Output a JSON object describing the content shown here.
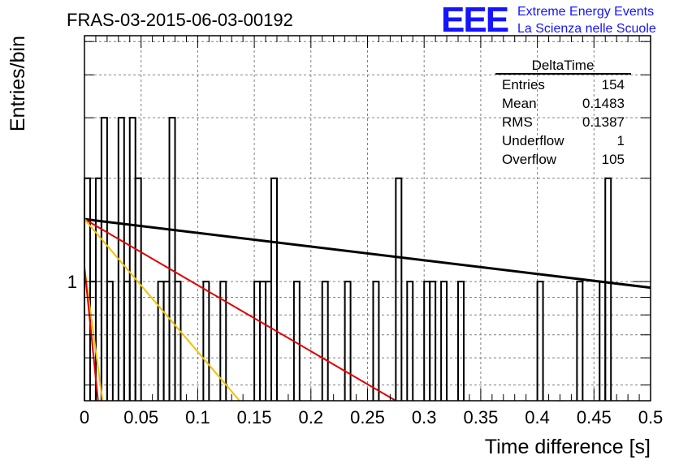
{
  "header": {
    "run_title": "FRAS-03-2015-06-03-00192",
    "logo_text": "EEE",
    "logo_line1": "Extreme Energy Events",
    "logo_line2": "La Scienza nelle Scuole",
    "logo_color": "#1414ff"
  },
  "chart_data": {
    "type": "bar",
    "title": "FRAS-03-2015-06-03-00192",
    "xlabel": "Time difference [s]",
    "ylabel": "Entries/bin",
    "xlim": [
      0,
      0.5
    ],
    "ylim": [
      0.45,
      5.2
    ],
    "y_scale": "log",
    "grid": true,
    "bin_width": 0.005,
    "x_ticks": [
      "0",
      "0.05",
      "0.1",
      "0.15",
      "0.2",
      "0.25",
      "0.3",
      "0.35",
      "0.4",
      "0.45",
      "0.5"
    ],
    "y_tick_labels": [
      {
        "value": 1,
        "label": "1"
      }
    ],
    "histogram": {
      "name": "DeltaTime",
      "color": "#000000",
      "bins": [
        {
          "x": 0.0,
          "y": 2
        },
        {
          "x": 0.005,
          "y": 1
        },
        {
          "x": 0.01,
          "y": 2
        },
        {
          "x": 0.015,
          "y": 3
        },
        {
          "x": 0.02,
          "y": 1
        },
        {
          "x": 0.025,
          "y": 0
        },
        {
          "x": 0.03,
          "y": 3
        },
        {
          "x": 0.035,
          "y": 1
        },
        {
          "x": 0.04,
          "y": 3
        },
        {
          "x": 0.045,
          "y": 2
        },
        {
          "x": 0.05,
          "y": 0
        },
        {
          "x": 0.055,
          "y": 0
        },
        {
          "x": 0.06,
          "y": 0
        },
        {
          "x": 0.065,
          "y": 1
        },
        {
          "x": 0.07,
          "y": 1
        },
        {
          "x": 0.075,
          "y": 3
        },
        {
          "x": 0.08,
          "y": 1
        },
        {
          "x": 0.085,
          "y": 0
        },
        {
          "x": 0.09,
          "y": 0
        },
        {
          "x": 0.095,
          "y": 0
        },
        {
          "x": 0.1,
          "y": 0
        },
        {
          "x": 0.105,
          "y": 1
        },
        {
          "x": 0.11,
          "y": 0
        },
        {
          "x": 0.115,
          "y": 0
        },
        {
          "x": 0.12,
          "y": 1
        },
        {
          "x": 0.125,
          "y": 0
        },
        {
          "x": 0.13,
          "y": 0
        },
        {
          "x": 0.135,
          "y": 0
        },
        {
          "x": 0.14,
          "y": 0
        },
        {
          "x": 0.145,
          "y": 0
        },
        {
          "x": 0.15,
          "y": 1
        },
        {
          "x": 0.155,
          "y": 1
        },
        {
          "x": 0.16,
          "y": 1
        },
        {
          "x": 0.165,
          "y": 2
        },
        {
          "x": 0.17,
          "y": 0
        },
        {
          "x": 0.175,
          "y": 0
        },
        {
          "x": 0.18,
          "y": 0
        },
        {
          "x": 0.185,
          "y": 1
        },
        {
          "x": 0.19,
          "y": 0
        },
        {
          "x": 0.195,
          "y": 0
        },
        {
          "x": 0.2,
          "y": 0
        },
        {
          "x": 0.205,
          "y": 0
        },
        {
          "x": 0.21,
          "y": 1
        },
        {
          "x": 0.215,
          "y": 0
        },
        {
          "x": 0.22,
          "y": 0
        },
        {
          "x": 0.225,
          "y": 0
        },
        {
          "x": 0.23,
          "y": 1
        },
        {
          "x": 0.235,
          "y": 0
        },
        {
          "x": 0.24,
          "y": 0
        },
        {
          "x": 0.245,
          "y": 0
        },
        {
          "x": 0.25,
          "y": 0
        },
        {
          "x": 0.255,
          "y": 1
        },
        {
          "x": 0.26,
          "y": 0
        },
        {
          "x": 0.265,
          "y": 0
        },
        {
          "x": 0.27,
          "y": 0
        },
        {
          "x": 0.275,
          "y": 2
        },
        {
          "x": 0.28,
          "y": 0
        },
        {
          "x": 0.285,
          "y": 1
        },
        {
          "x": 0.29,
          "y": 0
        },
        {
          "x": 0.295,
          "y": 0
        },
        {
          "x": 0.3,
          "y": 1
        },
        {
          "x": 0.305,
          "y": 1
        },
        {
          "x": 0.31,
          "y": 0
        },
        {
          "x": 0.315,
          "y": 1
        },
        {
          "x": 0.32,
          "y": 0
        },
        {
          "x": 0.325,
          "y": 0
        },
        {
          "x": 0.33,
          "y": 1
        },
        {
          "x": 0.335,
          "y": 0
        },
        {
          "x": 0.34,
          "y": 0
        },
        {
          "x": 0.345,
          "y": 0
        },
        {
          "x": 0.35,
          "y": 0
        },
        {
          "x": 0.355,
          "y": 0
        },
        {
          "x": 0.36,
          "y": 0
        },
        {
          "x": 0.365,
          "y": 0
        },
        {
          "x": 0.37,
          "y": 0
        },
        {
          "x": 0.375,
          "y": 0
        },
        {
          "x": 0.38,
          "y": 0
        },
        {
          "x": 0.385,
          "y": 0
        },
        {
          "x": 0.39,
          "y": 0
        },
        {
          "x": 0.395,
          "y": 0
        },
        {
          "x": 0.4,
          "y": 1
        },
        {
          "x": 0.405,
          "y": 0
        },
        {
          "x": 0.41,
          "y": 0
        },
        {
          "x": 0.415,
          "y": 0
        },
        {
          "x": 0.42,
          "y": 0
        },
        {
          "x": 0.425,
          "y": 0
        },
        {
          "x": 0.43,
          "y": 0
        },
        {
          "x": 0.435,
          "y": 1
        },
        {
          "x": 0.44,
          "y": 0
        },
        {
          "x": 0.445,
          "y": 0
        },
        {
          "x": 0.45,
          "y": 0
        },
        {
          "x": 0.455,
          "y": 1
        },
        {
          "x": 0.46,
          "y": 2
        },
        {
          "x": 0.465,
          "y": 0
        },
        {
          "x": 0.47,
          "y": 0
        },
        {
          "x": 0.475,
          "y": 0
        },
        {
          "x": 0.48,
          "y": 0
        },
        {
          "x": 0.485,
          "y": 0
        },
        {
          "x": 0.49,
          "y": 0
        },
        {
          "x": 0.495,
          "y": 0
        }
      ]
    },
    "fit_curves": [
      {
        "color": "#000000",
        "points": [
          {
            "x": 0,
            "y": 1.52
          },
          {
            "x": 0.5,
            "y": 0.96
          }
        ]
      },
      {
        "color": "#e00000",
        "points": [
          {
            "x": 0,
            "y": 1.52
          },
          {
            "x": 0.275,
            "y": 0.45
          }
        ]
      },
      {
        "color": "#f0c000",
        "points": [
          {
            "x": 0,
            "y": 1.52
          },
          {
            "x": 0.137,
            "y": 0.45
          }
        ]
      },
      {
        "color": "#f0c000",
        "points": [
          {
            "x": 0,
            "y": 1.1
          },
          {
            "x": 0.016,
            "y": 0.45
          }
        ]
      },
      {
        "color": "#e00000",
        "points": [
          {
            "x": 0,
            "y": 1.1
          },
          {
            "x": 0.012,
            "y": 0.45
          }
        ]
      }
    ],
    "stats_box": {
      "name": "DeltaTime",
      "rows": [
        {
          "label": "Entries",
          "value": "154"
        },
        {
          "label": "Mean",
          "value": "0.1483"
        },
        {
          "label": "RMS",
          "value": "0.1387"
        },
        {
          "label": "Underflow",
          "value": "1"
        },
        {
          "label": "Overflow",
          "value": "105"
        }
      ]
    }
  }
}
